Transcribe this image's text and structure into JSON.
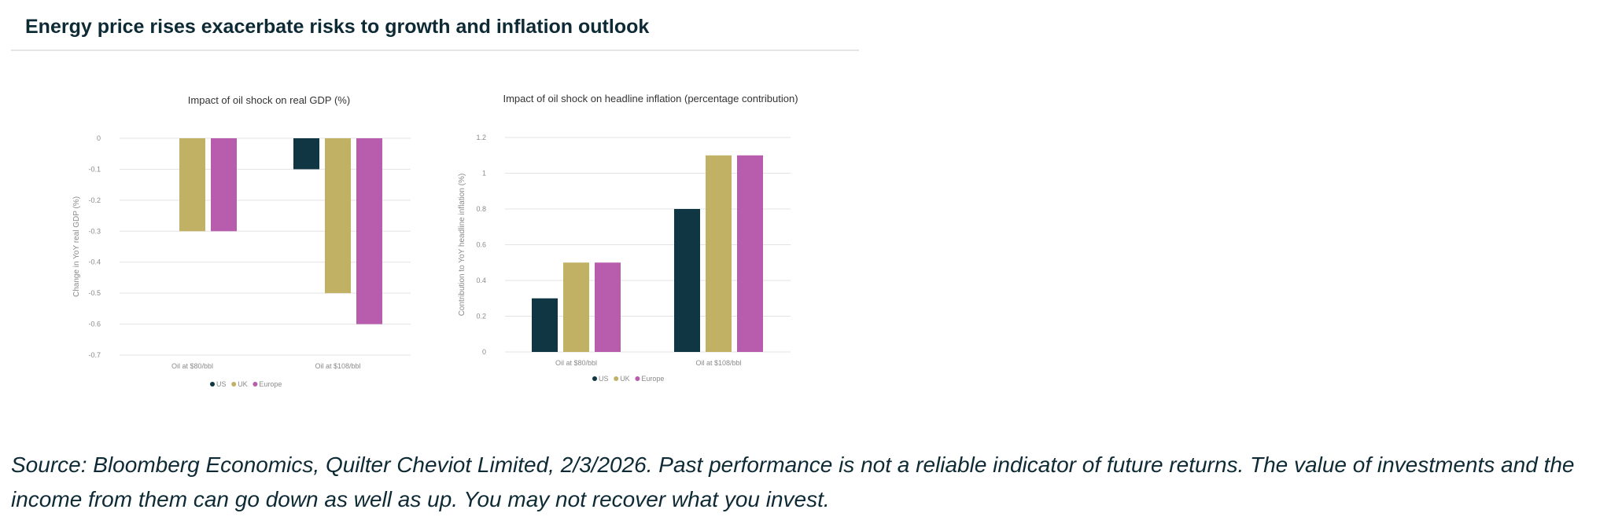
{
  "page": {
    "title": "Energy price rises exacerbate risks to growth and inflation outlook",
    "source_note": "Source: Bloomberg Economics, Quilter Cheviot Limited, 2/3/2026. Past performance is not a reliable indicator of future returns. The value of investments and the income from them can go down as well as up. You may not recover what you invest."
  },
  "colors": {
    "US": "#0f3642",
    "UK": "#c0b165",
    "Europe": "#b85cad"
  },
  "chart_data": [
    {
      "type": "bar",
      "title": "Impact of oil shock on real GDP (%)",
      "ylabel": "Change in YoY real GDP (%)",
      "xlabel": "",
      "categories": [
        "Oil at $80/bbl",
        "Oil at $108/bbl"
      ],
      "series": [
        {
          "name": "US",
          "values": [
            0,
            -0.1
          ]
        },
        {
          "name": "UK",
          "values": [
            -0.3,
            -0.5
          ]
        },
        {
          "name": "Europe",
          "values": [
            -0.3,
            -0.6
          ]
        }
      ],
      "ylim": [
        -0.7,
        0
      ],
      "yticks": [
        0,
        -0.1,
        -0.2,
        -0.3,
        -0.4,
        -0.5,
        -0.6,
        -0.7
      ],
      "ytick_labels": [
        "0",
        "-0.1",
        "-0.2",
        "-0.3",
        "-0.4",
        "-0.5",
        "-0.6",
        "-0.7"
      ],
      "grid": true,
      "legend": "bottom"
    },
    {
      "type": "bar",
      "title": "Impact of oil shock on headline inflation (percentage contribution)",
      "ylabel": "Contribution to YoY headline inflation (%)",
      "xlabel": "",
      "categories": [
        "Oil at $80/bbl",
        "Oil at $108/bbl"
      ],
      "series": [
        {
          "name": "US",
          "values": [
            0.3,
            0.8
          ]
        },
        {
          "name": "UK",
          "values": [
            0.5,
            1.1
          ]
        },
        {
          "name": "Europe",
          "values": [
            0.5,
            1.1
          ]
        }
      ],
      "ylim": [
        0,
        1.2
      ],
      "yticks": [
        0,
        0.2,
        0.4,
        0.6,
        0.8,
        1,
        1.2
      ],
      "ytick_labels": [
        "0",
        "0.2",
        "0.4",
        "0.6",
        "0.8",
        "1",
        "1.2"
      ],
      "grid": true,
      "legend": "bottom"
    }
  ]
}
